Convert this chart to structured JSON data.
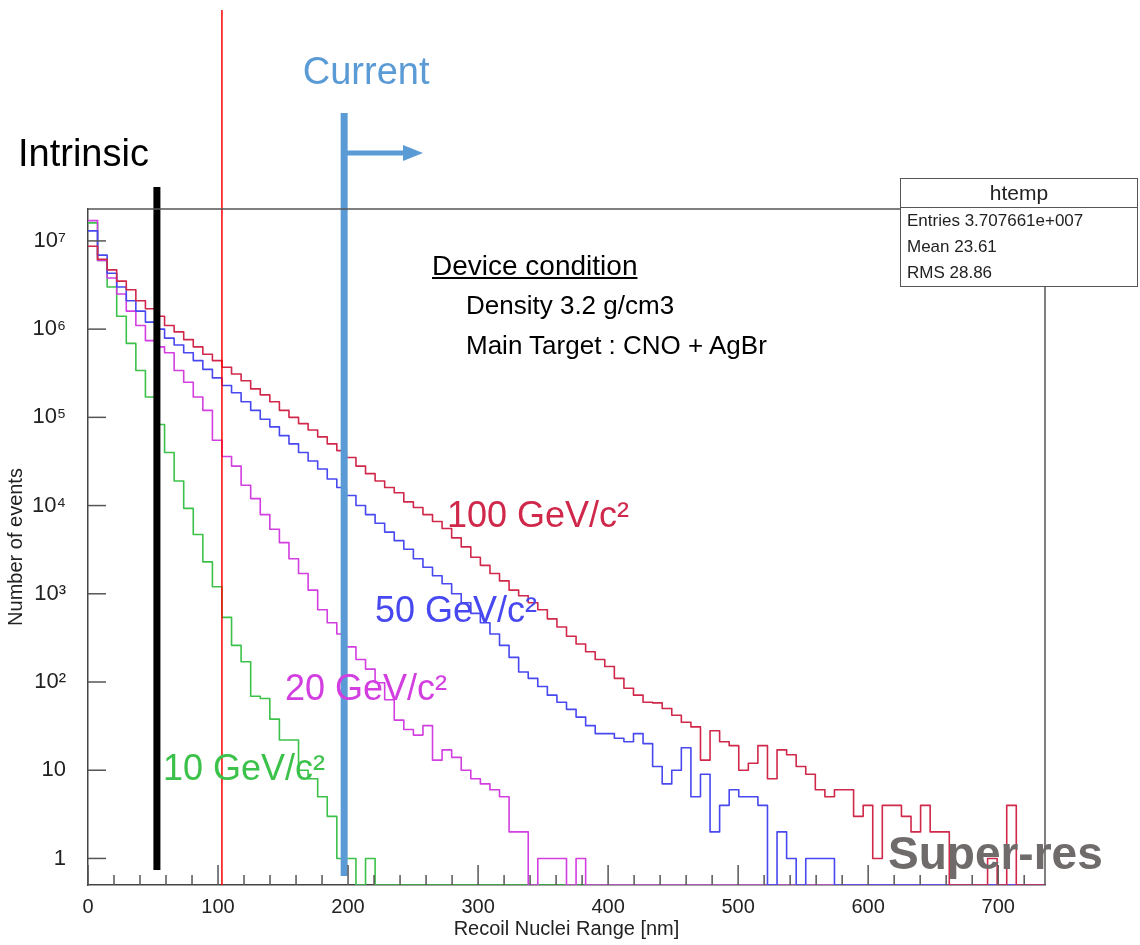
{
  "chart_data": {
    "type": "histogram",
    "xlabel": "Recoil Nuclei Range [nm]",
    "ylabel": "Number of events",
    "bins": [
      0,
      7.36,
      14.72,
      22.08,
      29.44,
      36.8,
      44.16,
      51.52,
      58.88,
      66.24,
      73.6,
      80.96,
      88.32,
      95.68,
      103.04,
      110.4,
      117.76,
      125.12,
      132.48,
      139.84,
      147.2,
      154.56,
      161.92,
      169.28,
      176.64,
      184,
      191.36,
      198.72,
      206.08,
      213.44,
      220.8,
      228.16,
      235.52,
      242.88,
      250.24,
      257.6,
      264.96,
      272.32,
      279.68,
      287.04,
      294.4,
      301.76,
      309.12,
      316.48,
      323.84,
      331.2,
      338.56,
      345.92,
      353.28,
      360.64,
      368,
      375.36,
      382.72,
      390.08,
      397.44,
      404.8,
      412.16,
      419.52,
      426.88,
      434.24,
      441.6,
      448.96,
      456.32,
      463.68,
      471.04,
      478.4,
      485.76,
      493.12,
      500.48,
      507.84,
      515.2,
      522.56,
      529.92,
      537.28,
      544.64,
      552,
      559.36,
      566.72,
      574.08,
      581.44,
      588.8,
      596.16,
      603.52,
      610.88,
      618.24,
      625.6,
      632.96,
      640.32,
      647.68,
      655.04,
      662.4,
      669.76,
      677.12,
      684.48,
      691.84,
      699.2,
      706.56,
      713.92,
      721.28,
      728.64,
      736
    ],
    "series": [
      {
        "name": "100 GeV/c²",
        "color": "#d0284a",
        "values": [
          8700000,
          6200000,
          4700000,
          3500000,
          2800000,
          2100000,
          1700000,
          1400000,
          1100000,
          930000,
          760000,
          630000,
          520000,
          440000,
          370000,
          310000,
          260000,
          210000,
          180000,
          150000,
          120000,
          100000,
          85000,
          72000,
          60000,
          50000,
          42000,
          35000,
          28000,
          23000,
          19000,
          16000,
          14000,
          11000,
          9500,
          7900,
          6600,
          5500,
          4300,
          3400,
          2600,
          2100,
          1700,
          1400,
          1100,
          950,
          790,
          660,
          520,
          420,
          330,
          270,
          220,
          180,
          150,
          110,
          85,
          71,
          59,
          58,
          50,
          42,
          35,
          31,
          13,
          28,
          21,
          19,
          10,
          12,
          19,
          8,
          17,
          15,
          11,
          9,
          6,
          5,
          6,
          6,
          3,
          4,
          1,
          4,
          4,
          3,
          2,
          4,
          2,
          2,
          null,
          null,
          null,
          null,
          1,
          null,
          4,
          null,
          null,
          null
        ]
      },
      {
        "name": "50 GeV/c²",
        "color": "#4848f0",
        "values": [
          13000000,
          6900000,
          4300000,
          3000000,
          2100000,
          1600000,
          1200000,
          1000000,
          790000,
          660000,
          540000,
          440000,
          350000,
          280000,
          230000,
          190000,
          150000,
          120000,
          95000,
          78000,
          62000,
          50000,
          40000,
          32000,
          26000,
          20000,
          16000,
          13000,
          10000,
          7900,
          6300,
          5000,
          4000,
          3200,
          2500,
          2000,
          1600,
          1300,
          1000,
          790,
          600,
          470,
          350,
          260,
          190,
          130,
          110,
          89,
          71,
          59,
          49,
          40,
          32,
          26,
          26,
          23,
          21,
          26,
          20,
          11,
          7,
          10,
          18,
          5,
          9,
          2,
          4,
          6,
          5,
          5,
          4,
          null,
          2,
          1,
          null,
          1,
          1,
          1,
          null,
          null,
          null,
          null,
          null,
          null,
          null,
          null,
          null,
          null,
          null,
          null,
          null,
          null,
          null,
          null,
          null,
          null,
          null,
          null,
          null,
          null
        ]
      },
      {
        "name": "20 GeV/c²",
        "color": "#d23ee0",
        "values": [
          17000000,
          6000000,
          3800000,
          2500000,
          1600000,
          1100000,
          740000,
          630000,
          540000,
          340000,
          250000,
          170000,
          120000,
          55000,
          36000,
          28000,
          17000,
          12000,
          7900,
          5400,
          3800,
          2500,
          1700,
          1100,
          660,
          470,
          350,
          250,
          180,
          140,
          98,
          63,
          37,
          29,
          25,
          32,
          13,
          17,
          14,
          10,
          8,
          7,
          6,
          5,
          2,
          2,
          null,
          1,
          1,
          1,
          null,
          1,
          null,
          null,
          null,
          null,
          null,
          null,
          null,
          null,
          null,
          null,
          null,
          null,
          null,
          null,
          null,
          null,
          null,
          null,
          null,
          null,
          null,
          null,
          null,
          null,
          null,
          null,
          null,
          null,
          null,
          null,
          null,
          null,
          null,
          null,
          null,
          null,
          null,
          null,
          null,
          null,
          null,
          null,
          null,
          null,
          null,
          null,
          null,
          null
        ]
      },
      {
        "name": "10 GeV/c²",
        "color": "#3cc24a",
        "values": [
          16000000,
          6000000,
          3000000,
          1400000,
          690000,
          340000,
          170000,
          83000,
          40000,
          19000,
          9300,
          4700,
          2300,
          1200,
          540,
          260,
          170,
          69,
          65,
          38,
          22,
          22,
          10,
          8,
          5,
          3,
          1,
          1,
          null,
          1,
          null,
          null,
          null,
          null,
          null,
          null,
          null,
          null,
          null,
          null,
          null,
          null,
          null,
          null,
          null,
          null,
          null,
          null,
          null,
          null,
          null,
          null,
          null,
          null,
          null,
          null,
          null,
          null,
          null,
          null,
          null,
          null,
          null,
          null,
          null,
          null,
          null,
          null,
          null,
          null,
          null,
          null,
          null,
          null,
          null,
          null,
          null,
          null,
          null,
          null,
          null,
          null,
          null,
          null,
          null,
          null,
          null,
          null,
          null,
          null,
          null,
          null,
          null,
          null,
          null,
          null,
          null,
          null,
          null,
          null
        ]
      }
    ],
    "xlim": [
      0,
      736
    ],
    "ylim": [
      0.5,
      23000000
    ],
    "log": true,
    "xticks": [
      0,
      {
        "value": 20,
        "label": null
      },
      {
        "value": 40,
        "label": null
      },
      {
        "value": 60,
        "label": null
      },
      {
        "value": 80,
        "label": null
      },
      100,
      {
        "value": 120,
        "label": null
      },
      {
        "value": 140,
        "label": null
      },
      {
        "value": 160,
        "label": null
      },
      {
        "value": 180,
        "label": null
      },
      200,
      {
        "value": 220,
        "label": null
      },
      {
        "value": 240,
        "label": null
      },
      {
        "value": 260,
        "label": null
      },
      {
        "value": 280,
        "label": null
      },
      300,
      {
        "value": 320,
        "label": null
      },
      {
        "value": 340,
        "label": null
      },
      {
        "value": 360,
        "label": null
      },
      {
        "value": 380,
        "label": null
      },
      400,
      {
        "value": 420,
        "label": null
      },
      {
        "value": 440,
        "label": null
      },
      {
        "value": 460,
        "label": null
      },
      {
        "value": 480,
        "label": null
      },
      500,
      {
        "value": 520,
        "label": null
      },
      {
        "value": 540,
        "label": null
      },
      {
        "value": 560,
        "label": null
      },
      {
        "value": 580,
        "label": null
      },
      600,
      {
        "value": 620,
        "label": null
      },
      {
        "value": 640,
        "label": null
      },
      {
        "value": 660,
        "label": null
      },
      {
        "value": 680,
        "label": null
      },
      700,
      {
        "value": 720,
        "label": null
      }
    ],
    "yticks": [
      1,
      10,
      {
        "value": 100,
        "label": "10²"
      },
      {
        "value": 1000,
        "label": "10³"
      },
      {
        "value": 10000,
        "label": "10⁴"
      },
      {
        "value": 100000,
        "label": "10⁵"
      },
      {
        "value": 1000000,
        "label": "10⁶"
      },
      {
        "value": 10000000,
        "label": "10⁷"
      }
    ],
    "ref_lines": [
      {
        "axis": "x",
        "value": 53,
        "label": "Intrinsic",
        "color": "#000000"
      },
      {
        "axis": "x",
        "value": 103,
        "color": "#ff0000"
      },
      {
        "axis": "x",
        "value": 197,
        "label": "Current",
        "color": "#5b9bd5"
      }
    ],
    "annotations": [
      "Device condition",
      "Density  3.2 g/cm3",
      "Main Target : CNO + AgBr",
      "htemp",
      "Entries 3.707661e+007",
      "Mean 23.61",
      "RMS 28.86",
      "Super-res"
    ],
    "grid": false,
    "legend": false,
    "marker": "none",
    "line_style": "solid"
  }
}
